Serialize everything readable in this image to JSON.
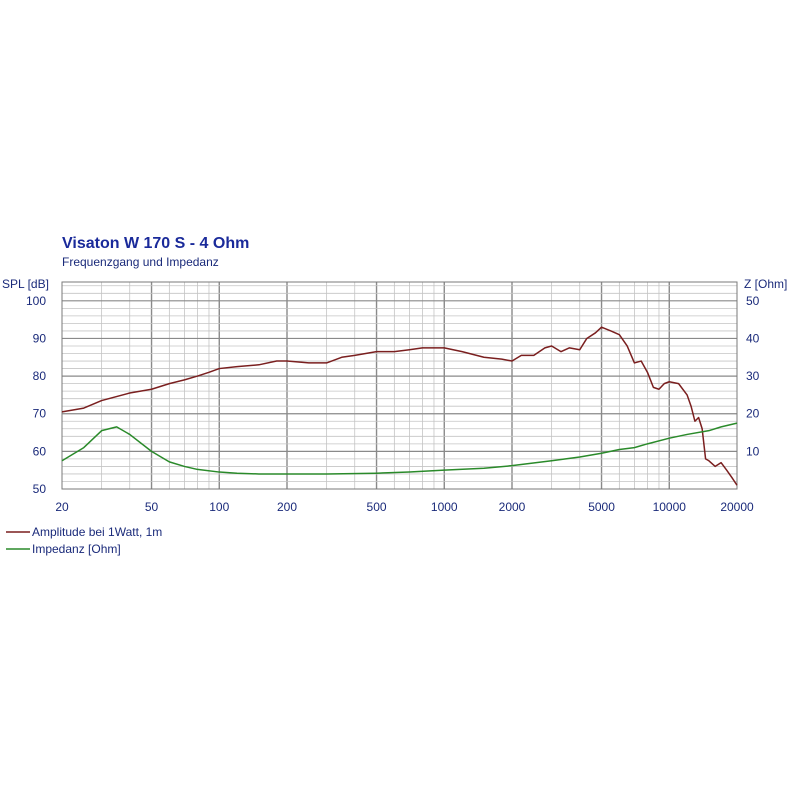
{
  "chart_data": {
    "type": "line",
    "title": "Visaton W 170 S - 4 Ohm",
    "subtitle": "Frequenzgang und Impedanz",
    "ylabel_left": "SPL [dB]",
    "ylabel_right": "Z [Ohm]",
    "x_scale": "log",
    "xlim": [
      20,
      20000
    ],
    "ylim_left": [
      50,
      105
    ],
    "ylim_right": [
      0,
      55
    ],
    "x_ticks": [
      20,
      50,
      100,
      200,
      500,
      1000,
      2000,
      5000,
      10000,
      20000
    ],
    "x_tick_labels": [
      "20",
      "50",
      "100",
      "200",
      "500",
      "1000",
      "2000",
      "5000",
      "10000",
      "20000"
    ],
    "y_left_ticks": [
      50,
      60,
      70,
      80,
      90,
      100
    ],
    "y_left_tick_labels": [
      "50",
      "60",
      "70",
      "80",
      "90",
      "100"
    ],
    "y_right_ticks": [
      10,
      20,
      30,
      40,
      50
    ],
    "y_right_tick_labels": [
      "10",
      "20",
      "30",
      "40",
      "50"
    ],
    "grid": true,
    "legend_position": "bottom-left",
    "series": [
      {
        "name": "Amplitude bei 1Watt, 1m",
        "axis": "left",
        "color": "#7a1f1f",
        "x": [
          20,
          25,
          30,
          40,
          50,
          60,
          70,
          80,
          90,
          100,
          120,
          150,
          180,
          200,
          250,
          300,
          350,
          400,
          500,
          600,
          700,
          800,
          900,
          1000,
          1200,
          1500,
          1800,
          2000,
          2200,
          2500,
          2800,
          3000,
          3300,
          3600,
          4000,
          4300,
          4700,
          5000,
          5500,
          6000,
          6500,
          7000,
          7500,
          8000,
          8500,
          9000,
          9500,
          10000,
          11000,
          12000,
          12500,
          13000,
          13500,
          14000,
          14500,
          15000,
          16000,
          17000,
          18000,
          19000,
          20000
        ],
        "y": [
          70.5,
          71.5,
          73.5,
          75.5,
          76.5,
          78,
          79,
          80,
          81,
          82,
          82.5,
          83,
          84,
          84,
          83.5,
          83.5,
          85,
          85.5,
          86.5,
          86.5,
          87,
          87.5,
          87.5,
          87.5,
          86.5,
          85,
          84.5,
          84,
          85.5,
          85.5,
          87.5,
          88,
          86.5,
          87.5,
          87,
          90,
          91.5,
          93,
          92,
          91,
          88,
          83.5,
          84,
          81,
          77,
          76.5,
          78,
          78.5,
          78,
          75,
          72,
          68,
          69,
          66,
          58,
          57.5,
          56,
          57,
          55,
          53,
          51
        ]
      },
      {
        "name": "Impedanz [Ohm]",
        "axis": "right",
        "color": "#2a8a2a",
        "x": [
          20,
          25,
          30,
          35,
          40,
          50,
          60,
          70,
          80,
          100,
          120,
          150,
          200,
          300,
          500,
          700,
          1000,
          1500,
          2000,
          3000,
          4000,
          5000,
          6000,
          7000,
          8000,
          10000,
          12000,
          15000,
          17000,
          20000
        ],
        "y": [
          7.5,
          11,
          15.5,
          16.5,
          14.5,
          10,
          7.2,
          6,
          5.2,
          4.5,
          4.2,
          4.0,
          4.0,
          4.0,
          4.2,
          4.5,
          5,
          5.5,
          6.2,
          7.5,
          8.5,
          9.5,
          10.5,
          11,
          12,
          13.5,
          14.5,
          15.5,
          16.5,
          17.5
        ]
      }
    ]
  }
}
